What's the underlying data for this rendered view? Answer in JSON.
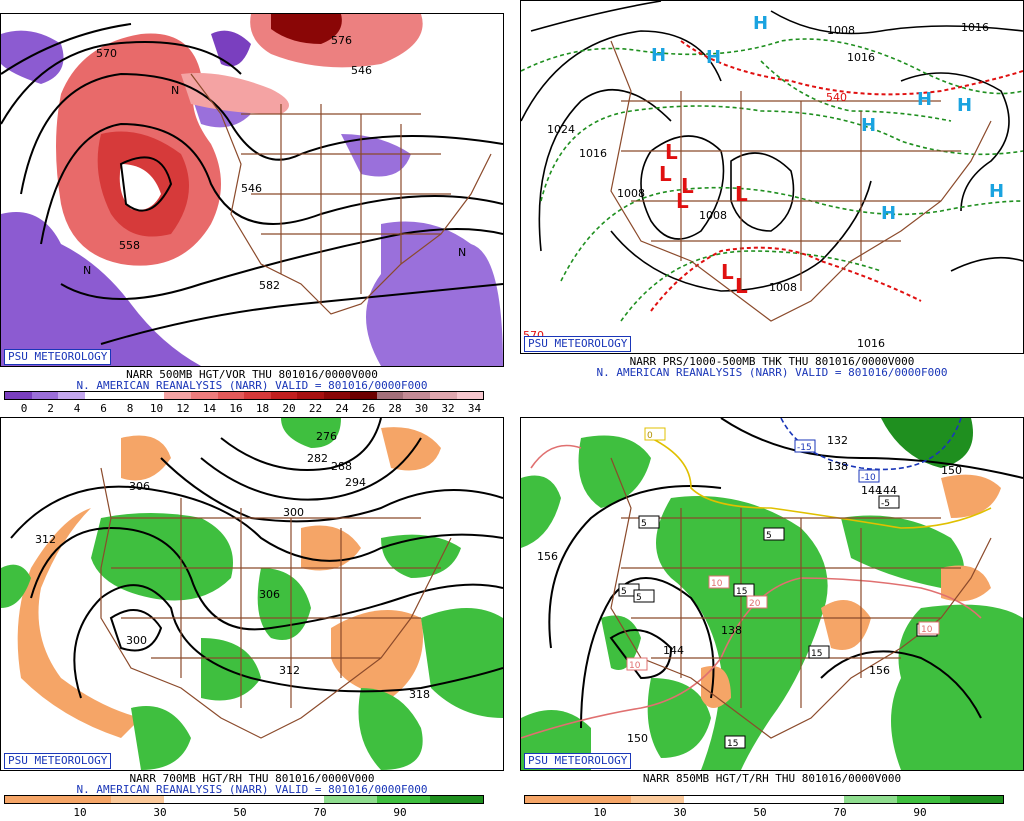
{
  "panels": [
    {
      "id": "p1",
      "badge": "PSU METEOROLOGY",
      "caption1": "NARR 500MB HGT/VOR THU 801016/0000V000",
      "caption2": "N. AMERICAN REANALYSIS (NARR) VALID = 801016/0000F000",
      "colorbar": {
        "colors": [
          "#7a3fbf",
          "#9b6fd9",
          "#c4a8ee",
          "#ffffff",
          "#ffffff",
          "#ffffff",
          "#f4a3a3",
          "#ee7d7d",
          "#e35a5a",
          "#d63a3a",
          "#c21f1f",
          "#a81010",
          "#8a0606",
          "#6d0000",
          "#a4707a",
          "#c48b95",
          "#e0a8b0",
          "#f7c8cf"
        ],
        "ticks": [
          "0",
          "2",
          "4",
          "6",
          "8",
          "10",
          "12",
          "14",
          "16",
          "18",
          "20",
          "22",
          "24",
          "26",
          "28",
          "30",
          "32",
          "34"
        ]
      },
      "labels": [
        "570",
        "546",
        "582",
        "558",
        "546",
        "576",
        "N",
        "N",
        "N"
      ]
    },
    {
      "id": "p2",
      "badge": "PSU METEOROLOGY",
      "caption1": "NARR PRS/1000-500MB THK THU 801016/0000V000",
      "caption2": "N. AMERICAN REANALYSIS (NARR) VALID = 801016/0000F000",
      "labels": [
        "1008",
        "1016",
        "1024",
        "1016",
        "1008",
        "1008",
        "1016",
        "1016",
        "1008",
        "540",
        "570"
      ]
    },
    {
      "id": "p3",
      "badge": "PSU METEOROLOGY",
      "caption1": "NARR 700MB HGT/RH THU 801016/0000V000",
      "caption2": "N. AMERICAN REANALYSIS (NARR) VALID = 801016/0000F000",
      "colorbar": {
        "colors": [
          "#f5a567",
          "#f5a567",
          "#fbc99a",
          "#ffffff",
          "#ffffff",
          "#ffffff",
          "#8fdd8f",
          "#3fbf3f",
          "#1f8f1f"
        ],
        "ticks": [
          "10",
          "30",
          "50",
          "70",
          "90"
        ]
      },
      "labels": [
        "276",
        "282",
        "288",
        "294",
        "300",
        "306",
        "312",
        "300",
        "306",
        "312",
        "318"
      ]
    },
    {
      "id": "p4",
      "badge": "PSU METEOROLOGY",
      "caption1": "NARR 850MB HGT/T/RH THU 801016/0000V000",
      "colorbar": {
        "colors": [
          "#f5a567",
          "#f5a567",
          "#fbc99a",
          "#ffffff",
          "#ffffff",
          "#ffffff",
          "#8fdd8f",
          "#3fbf3f",
          "#1f8f1f"
        ],
        "ticks": [
          "10",
          "30",
          "50",
          "70",
          "90"
        ]
      },
      "labels": [
        "132",
        "138",
        "144",
        "150",
        "156",
        "156",
        "144",
        "138",
        "144",
        "150"
      ],
      "boxes": [
        "-15",
        "-10",
        "-5",
        "5",
        "5",
        "5",
        "5",
        "10",
        "10",
        "15",
        "15",
        "15",
        "15",
        "20",
        "10",
        "0"
      ]
    }
  ]
}
